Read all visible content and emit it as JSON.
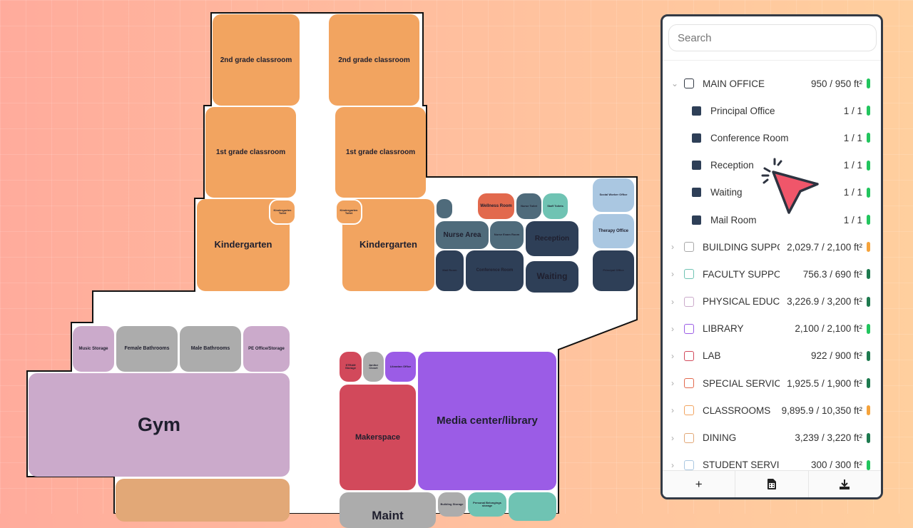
{
  "floorplan": {
    "rooms": {
      "grade2_left": "2nd grade classroom",
      "grade2_right": "2nd grade classroom",
      "grade1_left": "1st grade classroom",
      "grade1_right": "1st grade classroom",
      "kinder_left": "Kindergarten",
      "kinder_right": "Kindergarten",
      "kinder_toilet_left": "Kindergarten Toilet",
      "kinder_toilet_right": "Kindergarten Toilet",
      "wellness": "Wellness Room",
      "nurse_toilet": "Nurse Toilet",
      "staff_toilets": "Staff Toilets",
      "nurse_area": "Nurse Area",
      "nurse_exam": "Nurse Exam Room",
      "reception": "Reception",
      "mail_room": "Mail Room",
      "conference": "Conference Room",
      "waiting": "Waiting",
      "social_worker": "Social Worker Office",
      "therapy": "Therapy Office",
      "principal": "Principal Office",
      "music_storage": "Music Storage",
      "female_bath": "Female Bathrooms",
      "male_bath": "Male Bathrooms",
      "pe_office": "PE Office/Storage",
      "gym": "Gym",
      "steam_storage": "STEAM Storage",
      "janitor": "Janitor Closet",
      "librarian": "Librarian Office",
      "makerspace": "Makerspace",
      "media": "Media center/library",
      "maint": "Maint",
      "building_storage": "Building Storage",
      "personal_belongings": "Personal Belongings storage"
    }
  },
  "panel": {
    "search_placeholder": "Search",
    "groups": [
      {
        "label": "MAIN OFFICE",
        "value": "950 / 950 ft²",
        "expanded": true,
        "checkbox_color": "#333a45",
        "status_color": "#22c55e",
        "children": [
          {
            "label": "Principal Office",
            "value": "1 / 1"
          },
          {
            "label": "Conference Room",
            "value": "1 / 1"
          },
          {
            "label": "Reception",
            "value": "1 / 1"
          },
          {
            "label": "Waiting",
            "value": "1 / 1"
          },
          {
            "label": "Mail Room",
            "value": "1 / 1"
          }
        ]
      },
      {
        "label": "BUILDING SUPPORT",
        "value": "2,029.7 / 2,100 ft²",
        "checkbox_color": "#a9a9a9",
        "status_color": "#f5a33b"
      },
      {
        "label": "FACULTY SUPPORT",
        "value": "756.3 / 690 ft²",
        "checkbox_color": "#6fc3b3",
        "status_color": "#1e7a4f"
      },
      {
        "label": "PHYSICAL EDUCATION",
        "value": "3,226.9 / 3,200 ft²",
        "checkbox_color": "#cbaacb",
        "status_color": "#1e7a4f"
      },
      {
        "label": "LIBRARY",
        "value": "2,100 / 2,100 ft²",
        "checkbox_color": "#9b5ce6",
        "status_color": "#22c55e"
      },
      {
        "label": "LAB",
        "value": "922 / 900 ft²",
        "checkbox_color": "#d2495b",
        "status_color": "#1e7a4f"
      },
      {
        "label": "SPECIAL SERVICES",
        "value": "1,925.5 / 1,900 ft²",
        "checkbox_color": "#e2694d",
        "status_color": "#1e7a4f"
      },
      {
        "label": "CLASSROOMS",
        "value": "9,895.9 / 10,350 ft²",
        "checkbox_color": "#f2a460",
        "status_color": "#f5a33b"
      },
      {
        "label": "DINING",
        "value": "3,239 / 3,220 ft²",
        "checkbox_color": "#e2a877",
        "status_color": "#1e7a4f"
      },
      {
        "label": "STUDENT SERVICES",
        "value": "300 / 300 ft²",
        "checkbox_color": "#aac7e1",
        "status_color": "#22c55e"
      }
    ],
    "footer": {
      "add_icon": "plus-icon",
      "add": "+",
      "calc_icon": "calculator-icon",
      "download_icon": "download-icon"
    }
  },
  "cursor_icon": "pointer-click-icon"
}
